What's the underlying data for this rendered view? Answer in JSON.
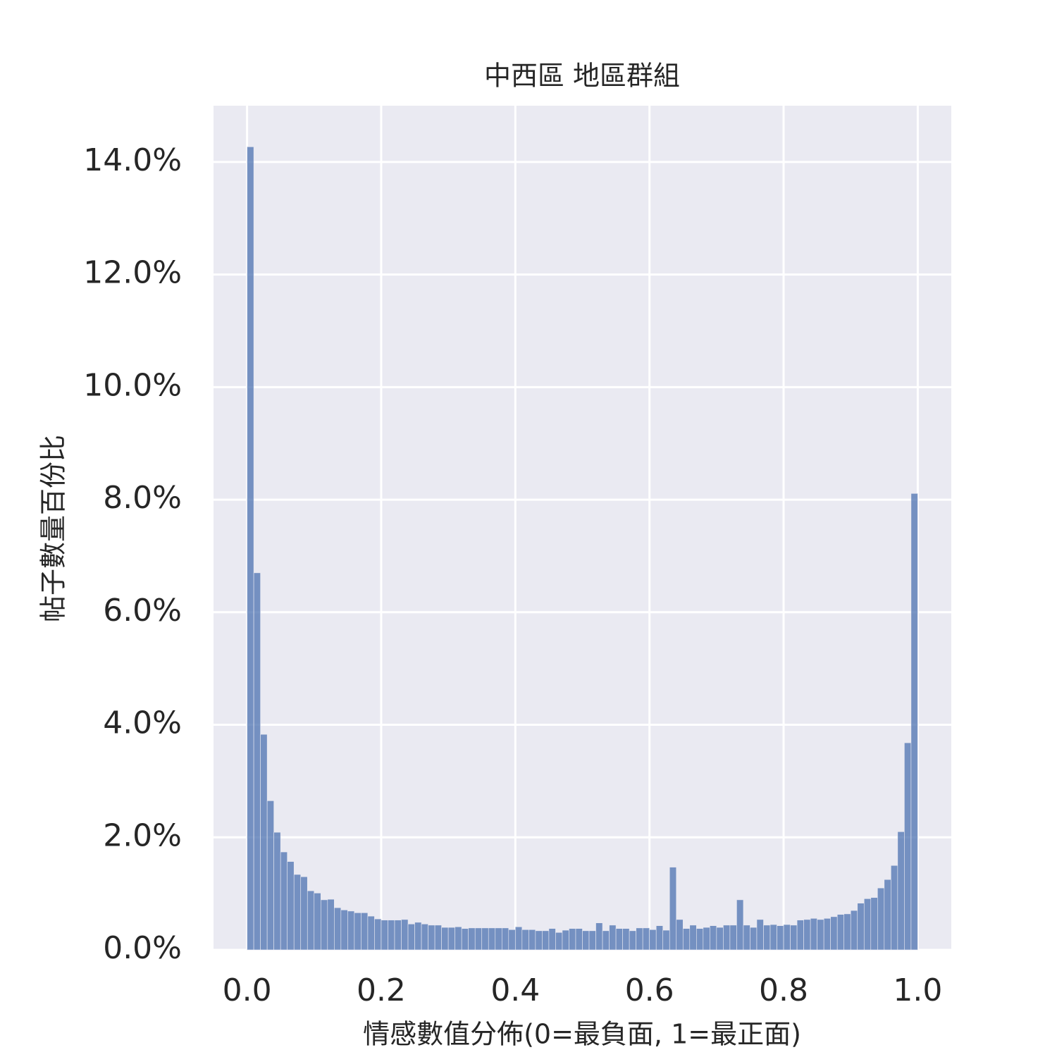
{
  "chart_data": {
    "type": "histogram",
    "title": "中西區 地區群組",
    "x_label": "情感數值分佈(0=最負面, 1=最正面)",
    "y_label": "帖子數量百份比",
    "color": "#4c72b0",
    "background": "#eaeaf2",
    "grid": true,
    "xlim": [
      -0.05,
      1.05
    ],
    "ylim": [
      0,
      15
    ],
    "xticks": [
      {
        "value": 0,
        "label": "0.0"
      },
      {
        "value": 0.2,
        "label": "0.2"
      },
      {
        "value": 0.4,
        "label": "0.4"
      },
      {
        "value": 0.6,
        "label": "0.6"
      },
      {
        "value": 0.8,
        "label": "0.8"
      },
      {
        "value": 1,
        "label": "1.0"
      }
    ],
    "yticks": [
      {
        "value": 0,
        "label": "0.0%"
      },
      {
        "value": 2,
        "label": "2.0%"
      },
      {
        "value": 4,
        "label": "4.0%"
      },
      {
        "value": 6,
        "label": "6.0%"
      },
      {
        "value": 8,
        "label": "8.0%"
      },
      {
        "value": 10,
        "label": "10.0%"
      },
      {
        "value": 12,
        "label": "12.0%"
      },
      {
        "value": 14,
        "label": "14.0%"
      }
    ],
    "bins": [
      0,
      0.01,
      0.02,
      0.03,
      0.04,
      0.05,
      0.06,
      0.07,
      0.08,
      0.09,
      0.1,
      0.11,
      0.12,
      0.13,
      0.14,
      0.15,
      0.16,
      0.17,
      0.18,
      0.19,
      0.2,
      0.21,
      0.22,
      0.23,
      0.24,
      0.25,
      0.26,
      0.27,
      0.28,
      0.29,
      0.3,
      0.31,
      0.32,
      0.33,
      0.34,
      0.35,
      0.36,
      0.37,
      0.38,
      0.39,
      0.4,
      0.41,
      0.42,
      0.43,
      0.44,
      0.45,
      0.46,
      0.47,
      0.48,
      0.49,
      0.5,
      0.51,
      0.52,
      0.53,
      0.54,
      0.55,
      0.56,
      0.57,
      0.58,
      0.59,
      0.6,
      0.61,
      0.62,
      0.63,
      0.64,
      0.65,
      0.66,
      0.67,
      0.68,
      0.69,
      0.7,
      0.71,
      0.72,
      0.73,
      0.74,
      0.75,
      0.76,
      0.77,
      0.78,
      0.79,
      0.8,
      0.81,
      0.82,
      0.83,
      0.84,
      0.85,
      0.86,
      0.87,
      0.88,
      0.89,
      0.9,
      0.91,
      0.92,
      0.93,
      0.94,
      0.95,
      0.96,
      0.97,
      0.98,
      0.99,
      1
    ],
    "values": [
      14.27,
      6.7,
      3.83,
      2.65,
      2.09,
      1.74,
      1.57,
      1.34,
      1.3,
      1.05,
      1.01,
      0.89,
      0.9,
      0.75,
      0.71,
      0.69,
      0.66,
      0.66,
      0.6,
      0.55,
      0.53,
      0.53,
      0.53,
      0.54,
      0.46,
      0.49,
      0.46,
      0.44,
      0.44,
      0.4,
      0.4,
      0.41,
      0.38,
      0.39,
      0.39,
      0.39,
      0.39,
      0.39,
      0.39,
      0.36,
      0.41,
      0.36,
      0.36,
      0.34,
      0.34,
      0.38,
      0.31,
      0.35,
      0.38,
      0.38,
      0.34,
      0.34,
      0.48,
      0.34,
      0.44,
      0.38,
      0.38,
      0.34,
      0.39,
      0.39,
      0.36,
      0.43,
      0.35,
      1.47,
      0.54,
      0.38,
      0.44,
      0.38,
      0.4,
      0.43,
      0.4,
      0.44,
      0.44,
      0.89,
      0.44,
      0.4,
      0.54,
      0.44,
      0.45,
      0.43,
      0.45,
      0.44,
      0.53,
      0.54,
      0.56,
      0.54,
      0.56,
      0.59,
      0.63,
      0.64,
      0.7,
      0.83,
      0.91,
      0.93,
      1.1,
      1.25,
      1.5,
      2.1,
      3.68,
      8.11
    ]
  }
}
